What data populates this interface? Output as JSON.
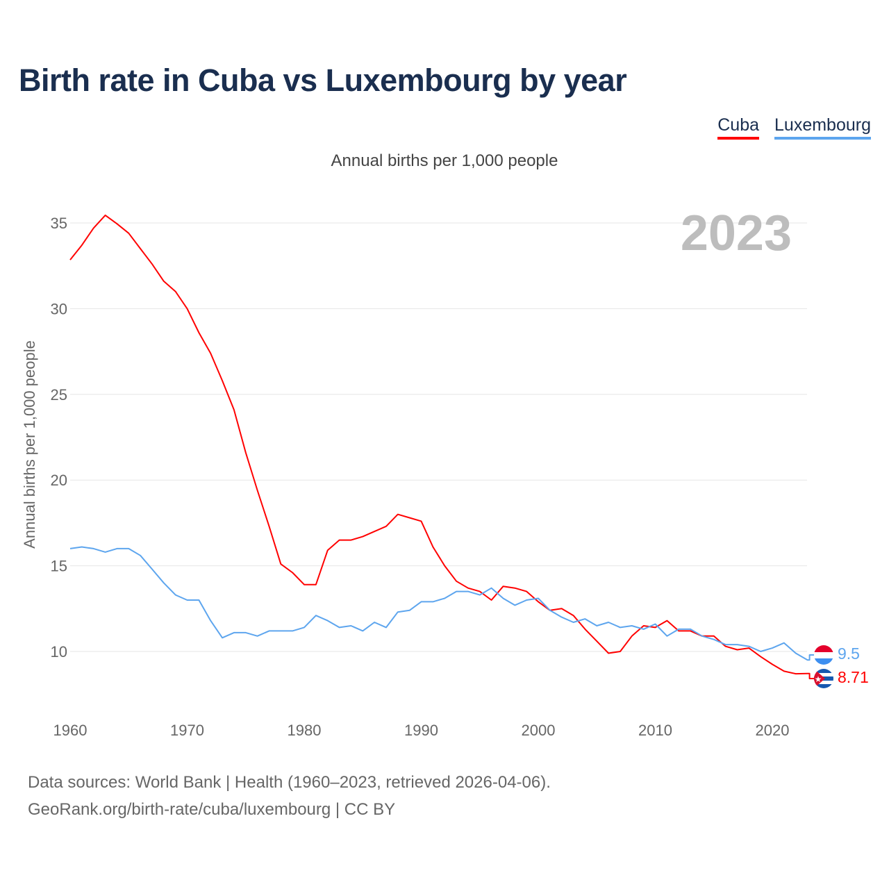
{
  "title": "Birth rate in Cuba vs Luxembourg by year",
  "legend": {
    "cuba": "Cuba",
    "luxembourg": "Luxembourg"
  },
  "subtitle": "Annual births per 1,000 people",
  "year_label": "2023",
  "source": {
    "line1": "Data sources: World Bank | Health (1960–2023, retrieved 2026-04-06).",
    "line2": "GeoRank.org/birth-rate/cuba/luxembourg | CC BY"
  },
  "end_labels": {
    "luxembourg": "9.5",
    "cuba": "8.71"
  },
  "flags": {
    "luxembourg": "luxembourg-flag",
    "cuba": "cuba-flag"
  },
  "chart_data": {
    "type": "line",
    "title": "Birth rate in Cuba vs Luxembourg by year",
    "xlabel": "",
    "ylabel": "Annual births per 1,000 people",
    "xlim": [
      1960,
      2023
    ],
    "ylim": [
      6.7,
      35
    ],
    "grid": true,
    "legend_position": "top-right",
    "xticks": [
      "1960",
      "1970",
      "1980",
      "1990",
      "2000",
      "2010",
      "2020"
    ],
    "yticks": [
      "10",
      "15",
      "20",
      "25",
      "30",
      "35"
    ],
    "x_start": 1960,
    "series": [
      {
        "name": "Cuba",
        "color": "#ff0000",
        "values": [
          32.85,
          33.7,
          34.7,
          35.45,
          34.95,
          34.4,
          33.5,
          32.6,
          31.6,
          31.0,
          30.0,
          28.6,
          27.4,
          25.8,
          24.1,
          21.6,
          19.4,
          17.3,
          15.1,
          14.6,
          13.9,
          13.9,
          15.9,
          16.5,
          16.5,
          16.7,
          17.0,
          17.3,
          18.0,
          17.8,
          17.6,
          16.1,
          15.0,
          14.1,
          13.7,
          13.5,
          13.0,
          13.8,
          13.7,
          13.5,
          12.9,
          12.4,
          12.5,
          12.1,
          11.3,
          10.6,
          9.9,
          10.0,
          10.9,
          11.5,
          11.4,
          11.8,
          11.2,
          11.2,
          10.9,
          10.9,
          10.3,
          10.1,
          10.2,
          9.7,
          9.25,
          8.85,
          8.7,
          8.71
        ]
      },
      {
        "name": "Luxembourg",
        "color": "#5da5ee",
        "values": [
          16.0,
          16.1,
          16.0,
          15.8,
          16.0,
          16.0,
          15.6,
          14.8,
          14.0,
          13.3,
          13.0,
          13.0,
          11.8,
          10.8,
          11.1,
          11.1,
          10.9,
          11.2,
          11.2,
          11.2,
          11.4,
          12.1,
          11.8,
          11.4,
          11.5,
          11.2,
          11.7,
          11.4,
          12.3,
          12.4,
          12.9,
          12.9,
          13.1,
          13.5,
          13.5,
          13.3,
          13.7,
          13.1,
          12.7,
          13.0,
          13.1,
          12.4,
          12.0,
          11.7,
          11.9,
          11.5,
          11.7,
          11.4,
          11.5,
          11.3,
          11.6,
          10.9,
          11.3,
          11.3,
          10.9,
          10.7,
          10.4,
          10.4,
          10.3,
          10.0,
          10.2,
          10.5,
          9.9,
          9.5
        ]
      }
    ]
  }
}
